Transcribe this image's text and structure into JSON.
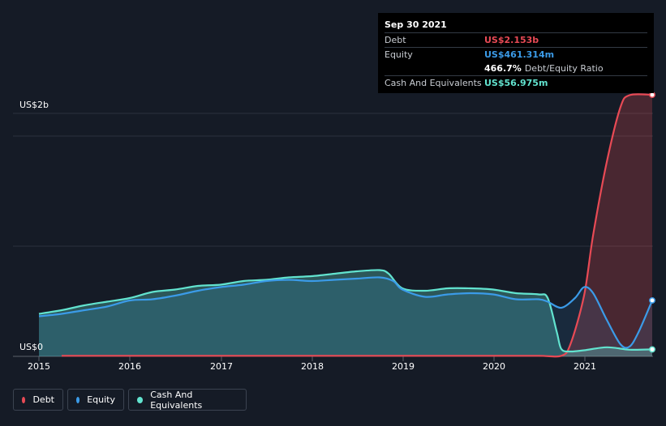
{
  "tooltip": {
    "date": "Sep 30 2021",
    "debt_label": "Debt",
    "debt_value": "US$2.153b",
    "equity_label": "Equity",
    "equity_value": "US$461.314m",
    "ratio_value": "466.7%",
    "ratio_label": "Debt/Equity Ratio",
    "cash_label": "Cash And Equivalents",
    "cash_value": "US$56.975m"
  },
  "colors": {
    "debt": "#e84a55",
    "equity": "#3b9be8",
    "cash": "#62e3cf",
    "background": "#151b26"
  },
  "chart_data": {
    "type": "area",
    "title": "",
    "xlabel": "",
    "ylabel": "",
    "y_axis_labels": [
      "US$2b",
      "US$0"
    ],
    "x_ticks": [
      "2015",
      "2016",
      "2017",
      "2018",
      "2019",
      "2020",
      "2021"
    ],
    "xlim": [
      2015.0,
      2021.75
    ],
    "ylim": [
      0,
      2.2
    ],
    "units": "US$ billions",
    "series": [
      {
        "name": "Debt",
        "x": [
          2015.25,
          2016.0,
          2017.0,
          2018.0,
          2019.0,
          2020.0,
          2020.5,
          2020.75,
          2020.85,
          2021.0,
          2021.1,
          2021.25,
          2021.4,
          2021.5,
          2021.75
        ],
        "values": [
          0.005,
          0.005,
          0.005,
          0.005,
          0.005,
          0.005,
          0.005,
          0.005,
          0.1,
          0.5,
          1.0,
          1.6,
          2.05,
          2.15,
          2.153
        ]
      },
      {
        "name": "Equity",
        "x": [
          2015.0,
          2015.25,
          2015.5,
          2015.75,
          2016.0,
          2016.25,
          2016.5,
          2016.75,
          2017.0,
          2017.25,
          2017.5,
          2017.75,
          2018.0,
          2018.25,
          2018.5,
          2018.75,
          2018.9,
          2019.0,
          2019.25,
          2019.5,
          2019.75,
          2020.0,
          2020.25,
          2020.5,
          2020.6,
          2020.75,
          2020.9,
          2021.0,
          2021.1,
          2021.25,
          2021.4,
          2021.5,
          2021.6,
          2021.75
        ],
        "values": [
          0.33,
          0.35,
          0.38,
          0.41,
          0.46,
          0.47,
          0.5,
          0.54,
          0.57,
          0.59,
          0.62,
          0.63,
          0.62,
          0.63,
          0.64,
          0.65,
          0.62,
          0.55,
          0.49,
          0.51,
          0.52,
          0.51,
          0.47,
          0.47,
          0.45,
          0.4,
          0.48,
          0.57,
          0.52,
          0.3,
          0.1,
          0.08,
          0.2,
          0.461
        ]
      },
      {
        "name": "Cash And Equivalents",
        "x": [
          2015.0,
          2015.25,
          2015.5,
          2015.75,
          2016.0,
          2016.25,
          2016.5,
          2016.75,
          2017.0,
          2017.25,
          2017.5,
          2017.75,
          2018.0,
          2018.25,
          2018.5,
          2018.75,
          2018.85,
          2019.0,
          2019.25,
          2019.5,
          2019.75,
          2020.0,
          2020.25,
          2020.5,
          2020.6,
          2020.7,
          2020.75,
          2020.85,
          2021.0,
          2021.25,
          2021.5,
          2021.75
        ],
        "values": [
          0.35,
          0.38,
          0.42,
          0.45,
          0.48,
          0.53,
          0.55,
          0.58,
          0.59,
          0.62,
          0.63,
          0.65,
          0.66,
          0.68,
          0.7,
          0.71,
          0.68,
          0.56,
          0.54,
          0.56,
          0.56,
          0.55,
          0.52,
          0.51,
          0.48,
          0.2,
          0.06,
          0.04,
          0.05,
          0.075,
          0.055,
          0.057
        ]
      }
    ]
  },
  "legend": {
    "debt": "Debt",
    "equity": "Equity",
    "cash": "Cash And Equivalents"
  }
}
